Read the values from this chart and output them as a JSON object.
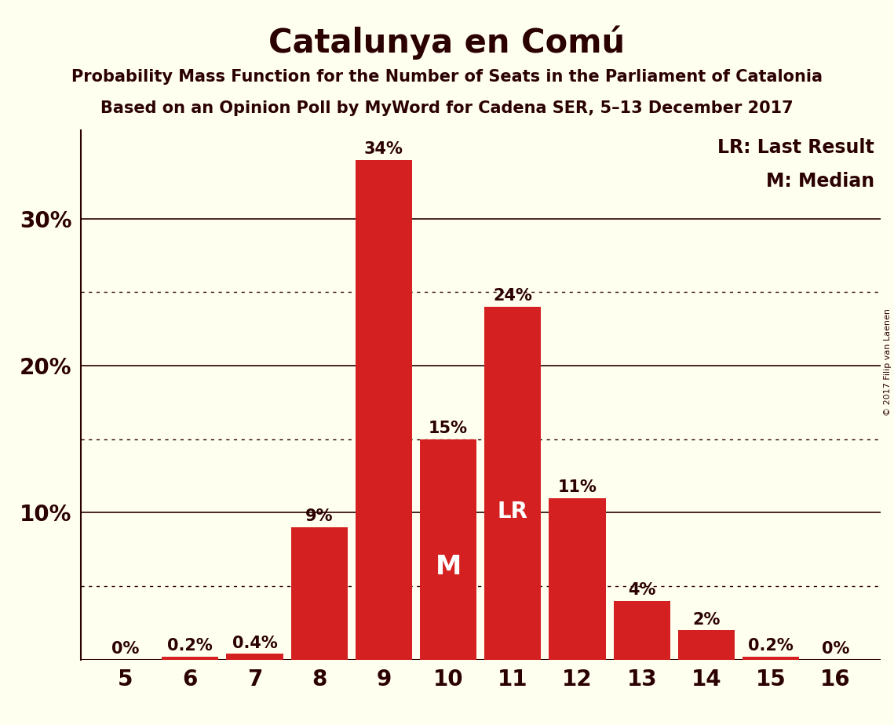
{
  "title": "Catalunya en Comú",
  "subtitle1": "Probability Mass Function for the Number of Seats in the Parliament of Catalonia",
  "subtitle2": "Based on an Opinion Poll by MyWord for Cadena SER, 5–13 December 2017",
  "copyright": "© 2017 Filip van Laenen",
  "seats": [
    5,
    6,
    7,
    8,
    9,
    10,
    11,
    12,
    13,
    14,
    15,
    16
  ],
  "probabilities": [
    0.0,
    0.2,
    0.4,
    9.0,
    34.0,
    15.0,
    24.0,
    11.0,
    4.0,
    2.0,
    0.2,
    0.0
  ],
  "bar_color": "#d42020",
  "background_color": "#fffff0",
  "text_color": "#2b0000",
  "median": 10,
  "last_result": 11,
  "yticks": [
    10,
    20,
    30
  ],
  "ytick_labels": [
    "10%",
    "20%",
    "30%"
  ],
  "dotted_lines": [
    5,
    15,
    25
  ],
  "solid_lines": [
    10,
    20,
    30
  ],
  "ylim": [
    0,
    36
  ],
  "legend_text": [
    "LR: Last Result",
    "M: Median"
  ],
  "lr_label": "LR",
  "m_label": "M",
  "bar_width": 0.88,
  "title_fontsize": 30,
  "subtitle_fontsize": 15,
  "tick_fontsize": 20,
  "label_fontsize": 15,
  "legend_fontsize": 17,
  "lr_fontsize": 20,
  "m_fontsize": 24
}
